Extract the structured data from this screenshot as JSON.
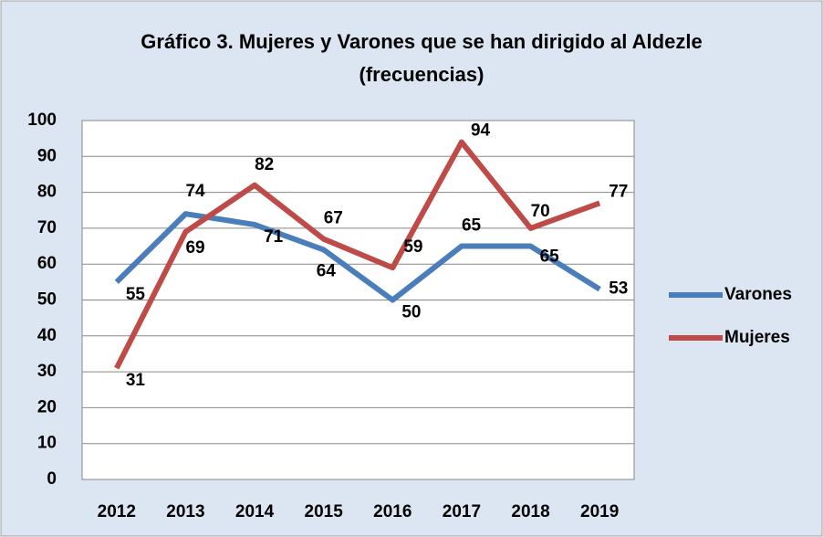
{
  "chart_data": {
    "type": "line",
    "title": "Gráfico 3. Mujeres y Varones que se han dirigido al Aldezle (frecuencias)",
    "categories": [
      "2012",
      "2013",
      "2014",
      "2015",
      "2016",
      "2017",
      "2018",
      "2019"
    ],
    "series": [
      {
        "name": "Varones",
        "color": "#4a7ebb",
        "values": [
          55,
          74,
          71,
          64,
          50,
          65,
          65,
          53
        ]
      },
      {
        "name": "Mujeres",
        "color": "#be4b48",
        "values": [
          31,
          69,
          82,
          67,
          59,
          94,
          70,
          77
        ]
      }
    ],
    "ylim": [
      0,
      100
    ],
    "yticks": [
      0,
      10,
      20,
      30,
      40,
      50,
      60,
      70,
      80,
      90,
      100
    ],
    "grid": true,
    "legend": "right"
  }
}
